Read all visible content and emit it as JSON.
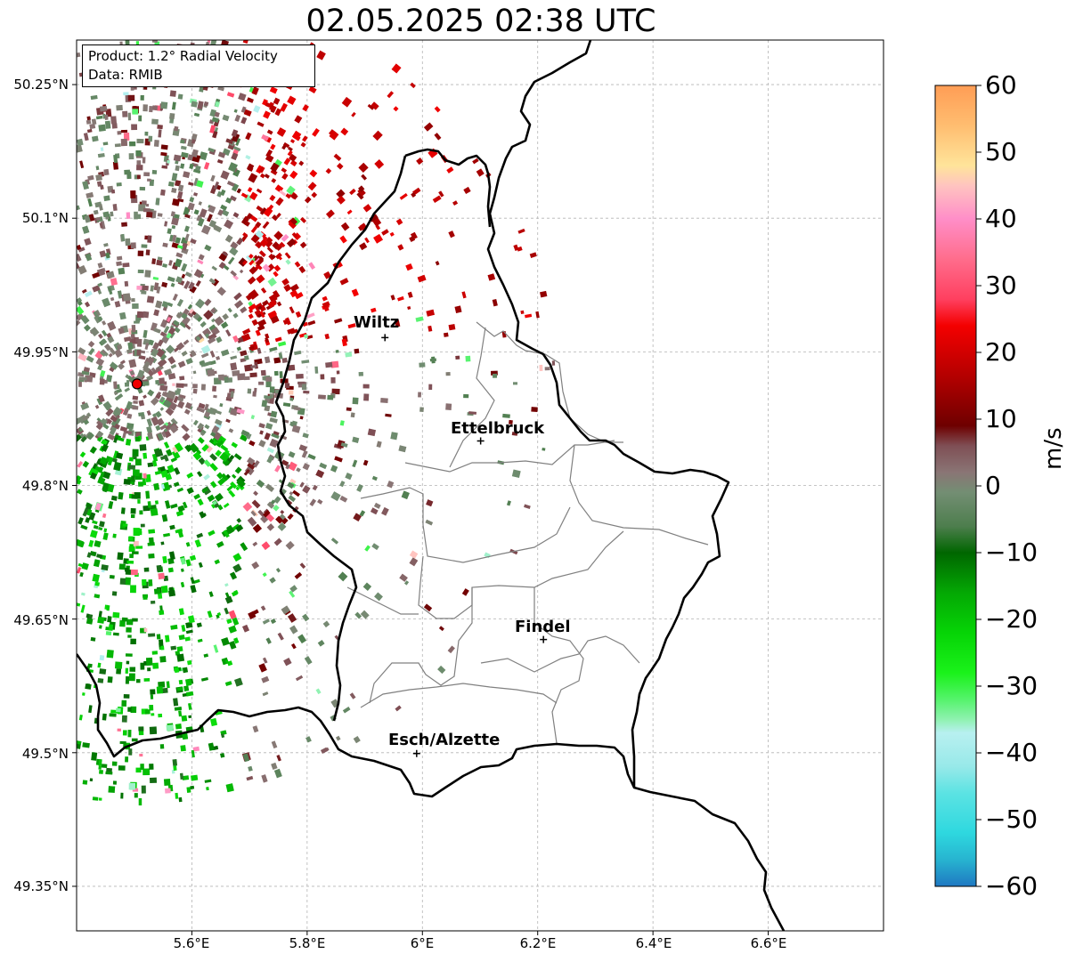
{
  "title": "02.05.2025 02:38 UTC",
  "info": {
    "product": "Product: 1.2° Radial Velocity",
    "data": "Data: RMIB"
  },
  "map": {
    "lon_range": [
      5.4,
      6.8
    ],
    "lat_range": [
      49.3,
      50.3
    ],
    "lat_ticks": [
      {
        "value": 50.25,
        "label": "50.25°N"
      },
      {
        "value": 50.1,
        "label": "50.1°N"
      },
      {
        "value": 49.95,
        "label": "49.95°N"
      },
      {
        "value": 49.8,
        "label": "49.8°N"
      },
      {
        "value": 49.65,
        "label": "49.65°N"
      },
      {
        "value": 49.5,
        "label": "49.5°N"
      },
      {
        "value": 49.35,
        "label": "49.35°N"
      }
    ],
    "lon_ticks": [
      {
        "value": 5.6,
        "label": "5.6°E"
      },
      {
        "value": 5.8,
        "label": "5.8°E"
      },
      {
        "value": 6.0,
        "label": "6°E"
      },
      {
        "value": 6.2,
        "label": "6.2°E"
      },
      {
        "value": 6.4,
        "label": "6.4°E"
      },
      {
        "value": 6.6,
        "label": "6.6°E"
      }
    ],
    "grid": true,
    "radar_site": {
      "lon": 5.505,
      "lat": 49.914
    },
    "cities": [
      {
        "name": "Wiltz",
        "lon": 5.935,
        "lat": 49.966
      },
      {
        "name": "Ettelbruck",
        "lon": 6.101,
        "lat": 49.85
      },
      {
        "name": "Findel",
        "lon": 6.21,
        "lat": 49.627
      },
      {
        "name": "Esch/Alzette",
        "lon": 5.99,
        "lat": 49.499
      }
    ]
  },
  "colorbar": {
    "unit": "m/s",
    "range": [
      -60,
      60
    ],
    "ticks": [
      {
        "value": 60,
        "label": "60"
      },
      {
        "value": 50,
        "label": "50"
      },
      {
        "value": 40,
        "label": "40"
      },
      {
        "value": 30,
        "label": "30"
      },
      {
        "value": 20,
        "label": "20"
      },
      {
        "value": 10,
        "label": "10"
      },
      {
        "value": 0,
        "label": "0"
      },
      {
        "value": -10,
        "label": "−10"
      },
      {
        "value": -20,
        "label": "−20"
      },
      {
        "value": -30,
        "label": "−30"
      },
      {
        "value": -40,
        "label": "−40"
      },
      {
        "value": -50,
        "label": "−50"
      },
      {
        "value": -60,
        "label": "−60"
      }
    ],
    "stops": [
      {
        "v": -60,
        "color": "#1f78c2"
      },
      {
        "v": -56,
        "color": "#27b4d0"
      },
      {
        "v": -52,
        "color": "#2ed8df"
      },
      {
        "v": -46,
        "color": "#5ce3e3"
      },
      {
        "v": -42,
        "color": "#98e9e9"
      },
      {
        "v": -37,
        "color": "#b8f0f0"
      },
      {
        "v": -35,
        "color": "#8ff2b0"
      },
      {
        "v": -32,
        "color": "#55f36c"
      },
      {
        "v": -28,
        "color": "#1af21a"
      },
      {
        "v": -22,
        "color": "#06d406"
      },
      {
        "v": -16,
        "color": "#04a804"
      },
      {
        "v": -10,
        "color": "#006600"
      },
      {
        "v": -6,
        "color": "#4e7e4e"
      },
      {
        "v": -1,
        "color": "#738e73"
      },
      {
        "v": 2,
        "color": "#8a7575"
      },
      {
        "v": 6,
        "color": "#7f4f55"
      },
      {
        "v": 9,
        "color": "#6e0000"
      },
      {
        "v": 16,
        "color": "#b00000"
      },
      {
        "v": 24,
        "color": "#f40000"
      },
      {
        "v": 28,
        "color": "#ff4060"
      },
      {
        "v": 34,
        "color": "#ff6d8c"
      },
      {
        "v": 40,
        "color": "#ff8ec8"
      },
      {
        "v": 45,
        "color": "#ffc4c0"
      },
      {
        "v": 48,
        "color": "#ffe49a"
      },
      {
        "v": 54,
        "color": "#ffbd70"
      },
      {
        "v": 60,
        "color": "#ff9d55"
      }
    ]
  }
}
